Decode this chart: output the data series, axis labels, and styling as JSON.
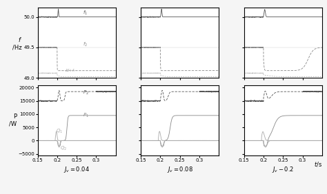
{
  "xlim": [
    0.15,
    0.35
  ],
  "xticks": [
    0.15,
    0.2,
    0.25,
    0.3
  ],
  "freq_ylim": [
    49.0,
    50.15
  ],
  "freq_yticks": [
    49,
    49.5,
    50
  ],
  "power_ylim": [
    -5500,
    21000
  ],
  "power_yticks": [
    -5000,
    0,
    5000,
    10000,
    15000,
    20000
  ],
  "col_labels": [
    "$J_v = 0.04$",
    "$J_v = 0.08$",
    "$J_v - 0.2$"
  ],
  "freq_ylabel": "$f$\n/Hz",
  "power_ylabel": "P\n/W",
  "jv_values": [
    0.04,
    0.08,
    0.2
  ],
  "background": "#f5f5f5"
}
